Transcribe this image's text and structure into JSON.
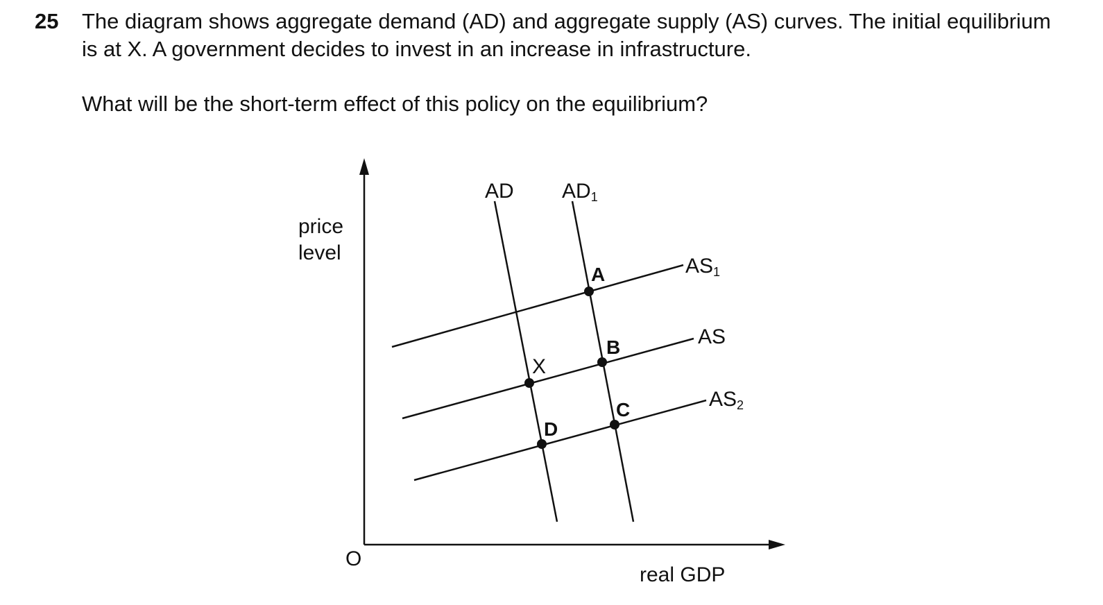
{
  "question": {
    "number": "25",
    "lines": [
      "The diagram shows aggregate demand (AD) and aggregate supply (AS) curves. The initial equilibrium",
      "is at X. A government decides to invest in an increase in infrastructure."
    ],
    "prompt": "What will be the short-term effect of this policy on the equilibrium?"
  },
  "diagram": {
    "y_axis_label": [
      "price",
      "level"
    ],
    "origin": "O",
    "x_axis_label": "real GDP",
    "curves": {
      "ad": {
        "text": "AD"
      },
      "ad1": {
        "text": "AD",
        "sub": "1"
      },
      "as1": {
        "text": "AS",
        "sub": "1"
      },
      "as": {
        "text": "AS"
      },
      "as2": {
        "text": "AS",
        "sub": "2"
      }
    },
    "points": {
      "a": "A",
      "b": "B",
      "x": "X",
      "c": "C",
      "d": "D"
    }
  }
}
